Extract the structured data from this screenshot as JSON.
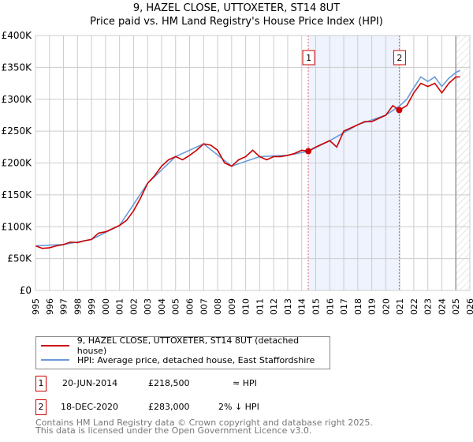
{
  "chart_data": {
    "type": "line",
    "title": "9, HAZEL CLOSE, UTTOXETER, ST14 8UT",
    "subtitle": "Price paid vs. HM Land Registry's House Price Index (HPI)",
    "xlim": [
      1995,
      2026
    ],
    "ylim": [
      0,
      400000
    ],
    "x_ticks": [
      "1995",
      "1996",
      "1997",
      "1998",
      "1999",
      "2000",
      "2001",
      "2002",
      "2003",
      "2004",
      "2005",
      "2006",
      "2007",
      "2008",
      "2009",
      "2010",
      "2011",
      "2012",
      "2013",
      "2014",
      "2015",
      "2016",
      "2017",
      "2018",
      "2019",
      "2020",
      "2021",
      "2022",
      "2023",
      "2024",
      "2025",
      "2026"
    ],
    "y_ticks": [
      {
        "v": 0,
        "label": "£0"
      },
      {
        "v": 50000,
        "label": "£50K"
      },
      {
        "v": 100000,
        "label": "£100K"
      },
      {
        "v": 150000,
        "label": "£150K"
      },
      {
        "v": 200000,
        "label": "£200K"
      },
      {
        "v": 250000,
        "label": "£250K"
      },
      {
        "v": 300000,
        "label": "£300K"
      },
      {
        "v": 350000,
        "label": "£350K"
      },
      {
        "v": 400000,
        "label": "£400K"
      }
    ],
    "grid": true,
    "shaded_range": [
      2014.47,
      2020.96
    ],
    "forecast_hatch_from": 2025.0,
    "series": [
      {
        "name": "9, HAZEL CLOSE, UTTOXETER, ST14 8UT (detached house)",
        "color": "#cc0000",
        "x": [
          1995,
          1995.5,
          1996,
          1996.5,
          1997,
          1997.5,
          1998,
          1998.5,
          1999,
          1999.5,
          2000,
          2000.5,
          2001,
          2001.5,
          2002,
          2002.5,
          2003,
          2003.5,
          2004,
          2004.5,
          2005,
          2005.5,
          2006,
          2006.5,
          2007,
          2007.5,
          2008,
          2008.5,
          2009,
          2009.5,
          2010,
          2010.5,
          2011,
          2011.5,
          2012,
          2012.5,
          2013,
          2013.5,
          2014,
          2014.47,
          2015,
          2015.5,
          2016,
          2016.5,
          2017,
          2017.5,
          2018,
          2018.5,
          2019,
          2019.5,
          2020,
          2020.5,
          2020.96,
          2021.5,
          2022,
          2022.5,
          2023,
          2023.5,
          2024,
          2024.5,
          2025,
          2025.3
        ],
        "y": [
          70000,
          66000,
          67000,
          70000,
          72000,
          76000,
          75000,
          78000,
          80000,
          90000,
          92000,
          97000,
          102000,
          110000,
          125000,
          145000,
          168000,
          180000,
          195000,
          205000,
          210000,
          205000,
          212000,
          220000,
          230000,
          228000,
          220000,
          200000,
          195000,
          205000,
          210000,
          220000,
          210000,
          205000,
          210000,
          210000,
          212000,
          215000,
          220000,
          218500,
          225000,
          230000,
          235000,
          225000,
          250000,
          255000,
          260000,
          265000,
          265000,
          270000,
          275000,
          290000,
          283000,
          290000,
          310000,
          325000,
          320000,
          325000,
          310000,
          325000,
          335000,
          335000
        ]
      },
      {
        "name": "HPI: Average price, detached house, East Staffordshire",
        "color": "#6a9bd8",
        "x": [
          1995,
          1997,
          1999,
          2001,
          2003,
          2005,
          2007,
          2009,
          2011,
          2013,
          2014.47,
          2016,
          2018,
          2020,
          2020.96,
          2021.5,
          2022,
          2022.5,
          2023,
          2023.5,
          2024,
          2024.5,
          2025,
          2025.3
        ],
        "y": [
          70000,
          72000,
          80000,
          102000,
          168000,
          210000,
          230000,
          195000,
          210000,
          212000,
          218500,
          235000,
          260000,
          275000,
          289000,
          300000,
          318000,
          335000,
          328000,
          335000,
          320000,
          333000,
          342000,
          345000
        ]
      }
    ],
    "markers": [
      {
        "label": "1",
        "x": 2014.47,
        "y": 218500
      },
      {
        "label": "2",
        "x": 2020.96,
        "y": 283000
      }
    ]
  },
  "table": [
    {
      "n": "1",
      "date": "20-JUN-2014",
      "price": "£218,500",
      "rel": "≈ HPI"
    },
    {
      "n": "2",
      "date": "18-DEC-2020",
      "price": "£283,000",
      "rel": "2% ↓ HPI"
    }
  ],
  "footer": [
    "Contains HM Land Registry data © Crown copyright and database right 2025.",
    "This data is licensed under the Open Government Licence v3.0."
  ]
}
